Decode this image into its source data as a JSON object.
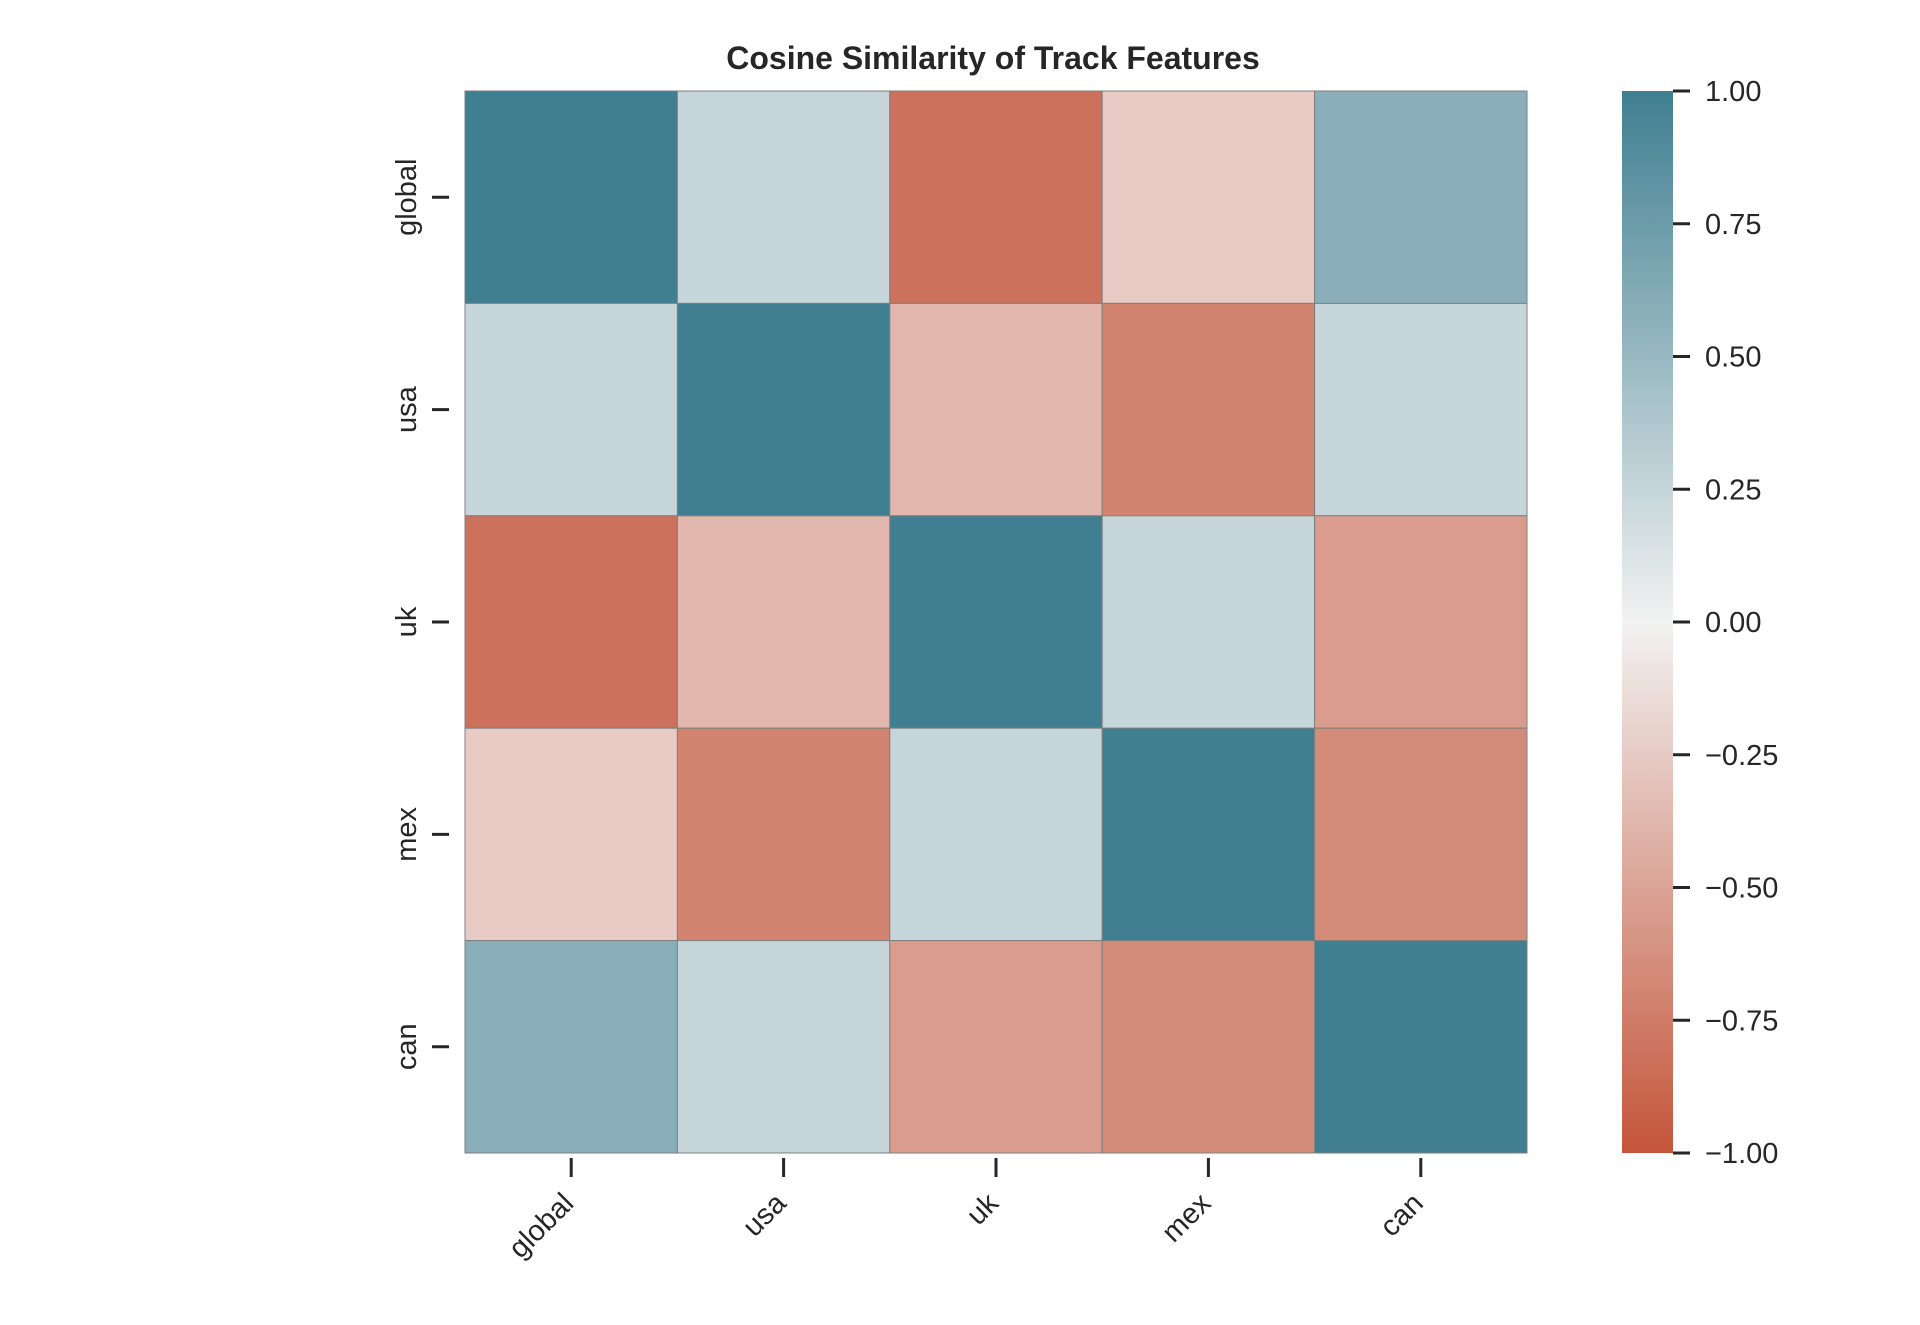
{
  "chart_data": {
    "type": "heatmap",
    "title": "Cosine Similarity of Track Features",
    "xlabel": "",
    "ylabel": "",
    "x_categories": [
      "global",
      "usa",
      "uk",
      "mex",
      "can"
    ],
    "y_categories": [
      "global",
      "usa",
      "uk",
      "mex",
      "can"
    ],
    "values": [
      [
        1.0,
        0.25,
        -0.82,
        -0.25,
        0.58
      ],
      [
        0.25,
        1.0,
        -0.38,
        -0.7,
        0.25
      ],
      [
        -0.82,
        -0.38,
        1.0,
        0.25,
        -0.55
      ],
      [
        -0.25,
        -0.7,
        0.25,
        1.0,
        -0.65
      ],
      [
        0.58,
        0.25,
        -0.55,
        -0.65,
        1.0
      ]
    ],
    "colorbar": {
      "vmin": -1.0,
      "vmax": 1.0,
      "ticks": [
        1.0,
        0.75,
        0.5,
        0.25,
        0.0,
        -0.25,
        -0.5,
        -0.75,
        -1.0
      ],
      "tick_labels": [
        "1.00",
        "0.75",
        "0.50",
        "0.25",
        "0.00",
        "−0.25",
        "−0.50",
        "−0.75",
        "−1.00"
      ]
    },
    "colormap": {
      "negative": "#c4553a",
      "neutral": "#f2f2f2",
      "positive": "#3f7f91"
    },
    "grid": false,
    "legend": "colorbar-right"
  }
}
